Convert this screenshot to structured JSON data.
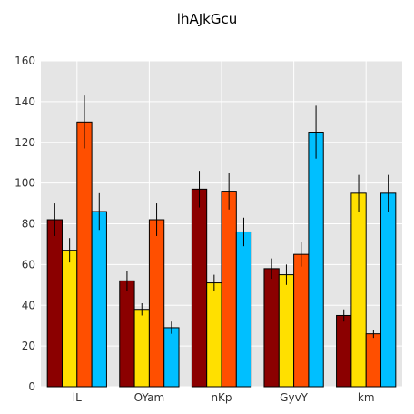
{
  "chart_data": {
    "type": "bar",
    "title": "lhAJkGcu",
    "xlabel": "",
    "ylabel": "",
    "categories": [
      "lL",
      "OYam",
      "nKp",
      "GyvY",
      "km"
    ],
    "ylim": [
      0,
      160
    ],
    "yticks": [
      0,
      20,
      40,
      60,
      80,
      100,
      120,
      140,
      160
    ],
    "grid": true,
    "legend": "none",
    "series": [
      {
        "color": "#8b0000",
        "values": [
          82,
          52,
          97,
          58,
          35
        ],
        "errors": [
          8,
          5,
          9,
          5,
          3
        ]
      },
      {
        "color": "#ffe000",
        "values": [
          67,
          38,
          51,
          55,
          95
        ],
        "errors": [
          6,
          3,
          4,
          5,
          9
        ]
      },
      {
        "color": "#ff4f00",
        "values": [
          130,
          82,
          96,
          65,
          26
        ],
        "errors": [
          13,
          8,
          9,
          6,
          2
        ]
      },
      {
        "color": "#00bfff",
        "values": [
          86,
          29,
          76,
          125,
          95
        ],
        "errors": [
          9,
          3,
          7,
          13,
          9
        ]
      }
    ]
  }
}
